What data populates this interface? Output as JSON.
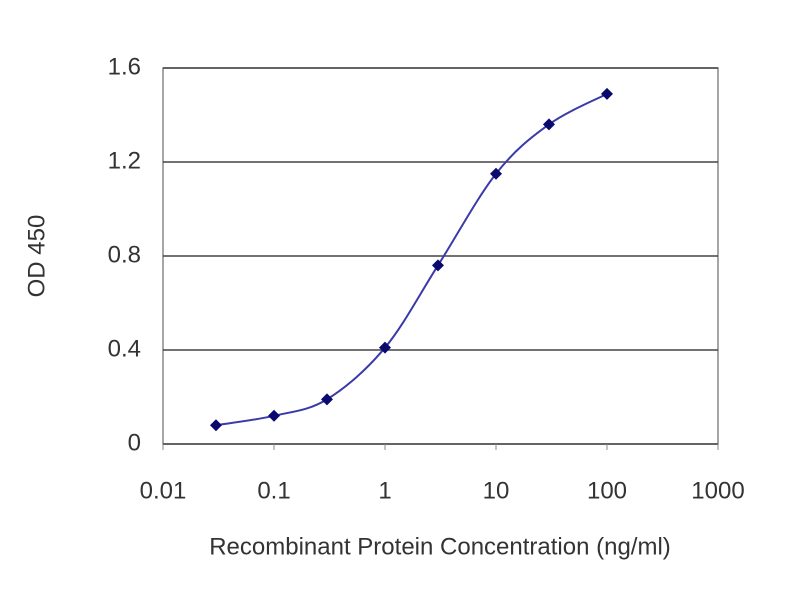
{
  "chart_data": {
    "type": "line",
    "x_label": "Recombinant Protein Concentration (ng/ml)",
    "y_label": "OD 450",
    "x": [
      0.03,
      0.1,
      0.3,
      1,
      3,
      10,
      30,
      100
    ],
    "values": [
      0.08,
      0.12,
      0.19,
      0.41,
      0.76,
      1.15,
      1.36,
      1.49
    ],
    "color": "#3a3aa8",
    "marker_color": "#0a0a6e",
    "x_log": true,
    "xlim": [
      0.01,
      1000
    ],
    "xticks": [
      0.01,
      0.1,
      1,
      10,
      100,
      1000
    ],
    "ylim": [
      0,
      1.6
    ],
    "yticks": [
      0,
      0.4,
      0.8,
      1.2,
      1.6
    ],
    "grid": true
  }
}
